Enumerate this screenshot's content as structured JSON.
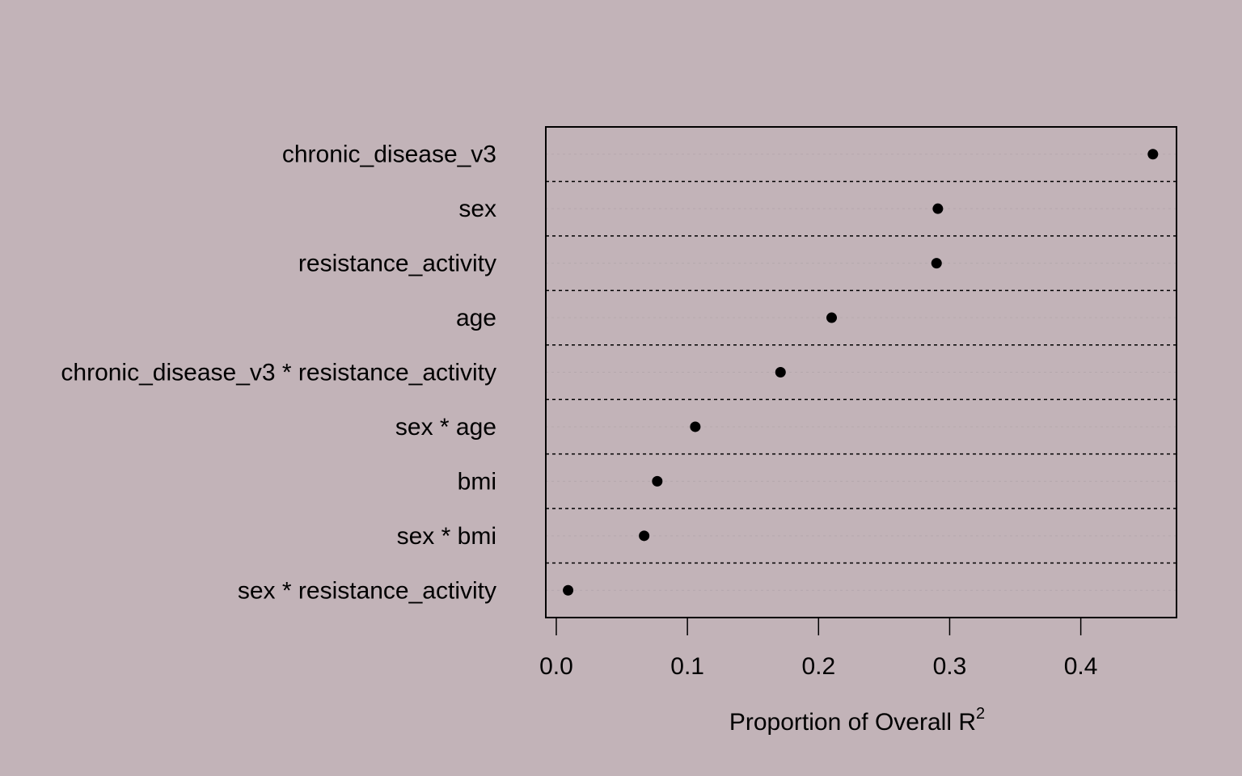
{
  "chart_data": {
    "type": "scatter",
    "title": "",
    "xlabel": "Proportion of Overall R",
    "xlabel_superscript": "2",
    "ylabel": "",
    "xlim": [
      -0.008,
      0.473
    ],
    "x_ticks": [
      0.0,
      0.1,
      0.2,
      0.3,
      0.4
    ],
    "x_tick_labels": [
      "0.0",
      "0.1",
      "0.2",
      "0.3",
      "0.4"
    ],
    "grid": true,
    "point_color": "#000000",
    "background": "#c2b3b8",
    "categories": [
      "chronic_disease_v3",
      "sex",
      "resistance_activity",
      "age",
      "chronic_disease_v3 * resistance_activity",
      "sex * age",
      "bmi",
      "sex * bmi",
      "sex * resistance_activity"
    ],
    "values": [
      0.455,
      0.291,
      0.29,
      0.21,
      0.171,
      0.106,
      0.077,
      0.067,
      0.009
    ]
  }
}
